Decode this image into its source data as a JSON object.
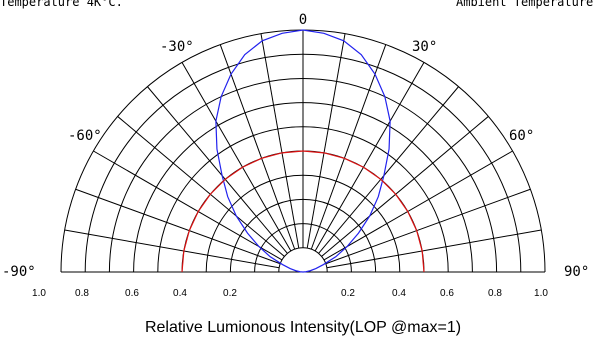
{
  "chart_data": {
    "type": "polar",
    "title": "",
    "xlabel": "Relative Lumionous Intensity(LOP @max=1)",
    "top_left_note": "Temperature 4K°C.",
    "top_right_note": "Ambient Temperature",
    "angle_labels": [
      "-90°",
      "-60°",
      "-30°",
      "0",
      "30°",
      "60°",
      "90°"
    ],
    "radial_tick_labels": [
      "1.0",
      "0.8",
      "0.6",
      "0.4",
      "0.2",
      "0.2",
      "0.4",
      "0.6",
      "0.8",
      "1.0"
    ],
    "angle_range_deg": [
      -90,
      90
    ],
    "radial_range": [
      0,
      1
    ],
    "ring_values": [
      0.1,
      0.2,
      0.3,
      0.4,
      0.5,
      0.6,
      0.7,
      0.8,
      0.9,
      1.0
    ],
    "spoke_step_deg": 10,
    "series": [
      {
        "color": "#2222ee",
        "angles_deg": [
          0,
          5,
          10,
          15,
          20,
          25,
          30,
          35,
          40,
          45,
          50,
          55,
          60,
          65,
          70,
          75,
          80,
          85,
          90
        ],
        "values": [
          1.0,
          0.99,
          0.97,
          0.93,
          0.87,
          0.8,
          0.72,
          0.62,
          0.52,
          0.44,
          0.36,
          0.28,
          0.21,
          0.15,
          0.09,
          0.055,
          0.03,
          0.012,
          0.0
        ]
      },
      {
        "color": "#dd1111",
        "angles_deg": [
          0,
          10,
          20,
          30,
          40,
          50,
          60,
          70,
          80,
          90
        ],
        "values": [
          0.5,
          0.5,
          0.5,
          0.5,
          0.5,
          0.5,
          0.5,
          0.5,
          0.5,
          0.5
        ]
      }
    ]
  }
}
